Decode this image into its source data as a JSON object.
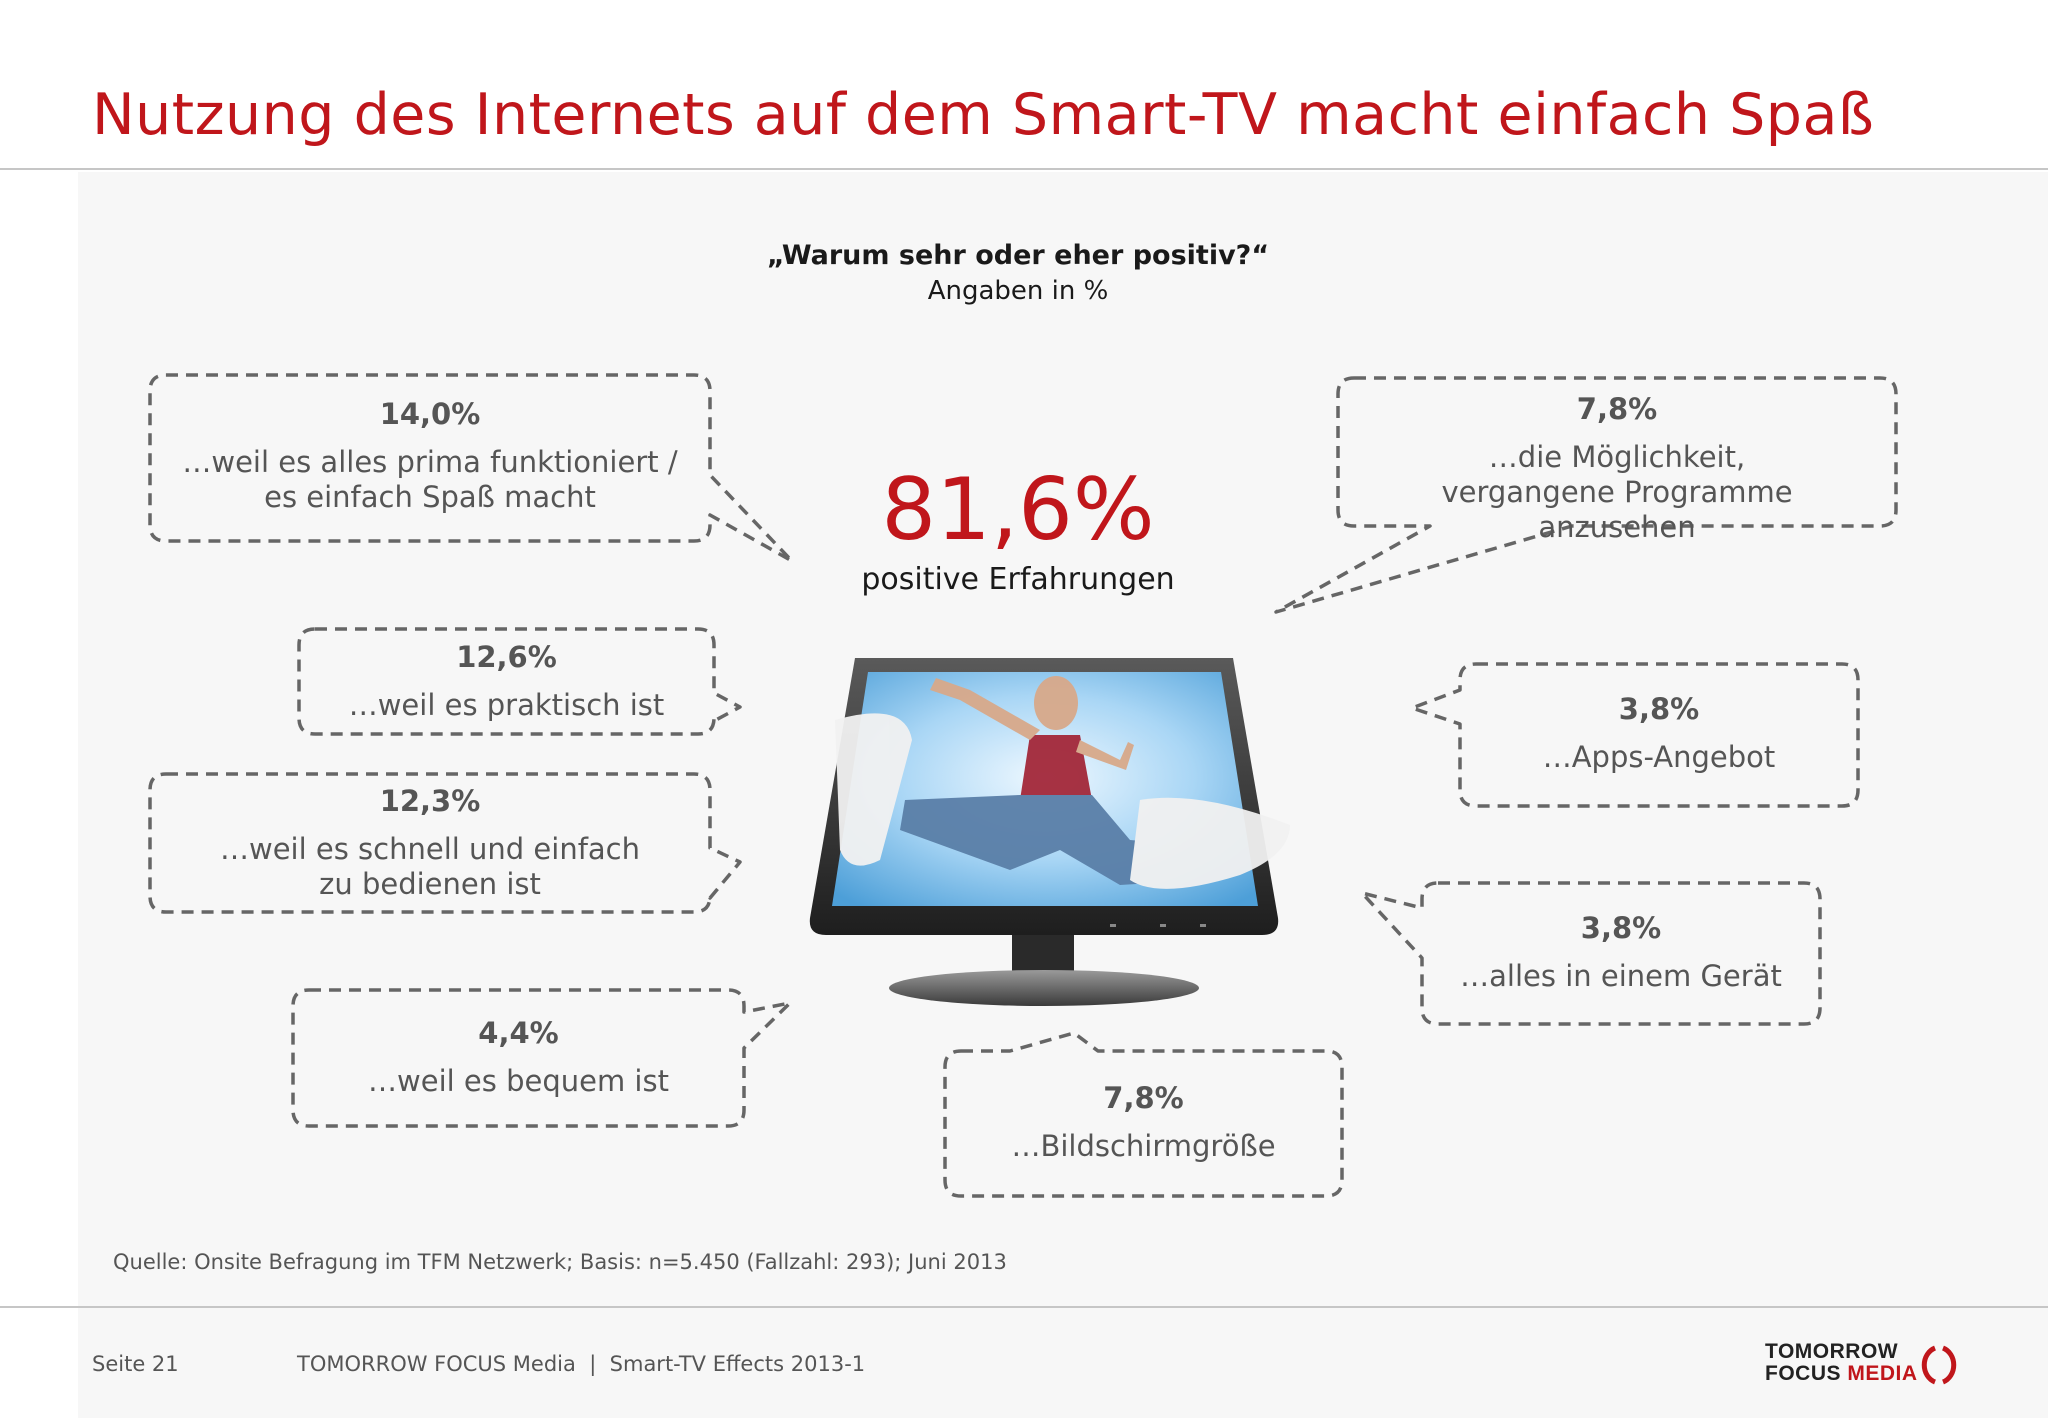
{
  "title": "Nutzung des Internets auf dem Smart-TV macht einfach Spaß",
  "question": "„Warum  sehr  oder eher positiv?“",
  "unit": "Angaben in %",
  "headline": {
    "value": "81,6%",
    "label": "positive Erfahrungen"
  },
  "bubbles": [
    {
      "value": "14,0%",
      "text": "…weil es alles prima funktioniert / es einfach Spaß macht"
    },
    {
      "value": "12,6%",
      "text": "…weil es praktisch ist"
    },
    {
      "value": "12,3%",
      "text": "…weil es schnell und einfach zu bedienen ist"
    },
    {
      "value": "4,4%",
      "text": "…weil es bequem ist"
    },
    {
      "value": "7,8%",
      "text": "…die Möglichkeit, vergangene Programme anzusehen"
    },
    {
      "value": "3,8%",
      "text": "…Apps-Angebot"
    },
    {
      "value": "3,8%",
      "text": "…alles in einem Gerät"
    },
    {
      "value": "7,8%",
      "text": "…Bildschirmgröße"
    }
  ],
  "source": "Quelle: Onsite Befragung im TFM Netzwerk; Basis: n=5.450 (Fallzahl: 293); Juni 2013",
  "footer": {
    "page": "Seite 21",
    "company": "TOMORROW FOCUS Media  |  Smart-TV Effects 2013-1"
  },
  "logo": {
    "line1": "TOMORROW",
    "line2_a": "FOCUS",
    "line2_b": "MEDIA"
  },
  "colors": {
    "accent": "#c0161b",
    "text": "#555555",
    "dash": "#666666"
  },
  "icons": [
    "smart-tv-image",
    "logo-mark-icon"
  ]
}
